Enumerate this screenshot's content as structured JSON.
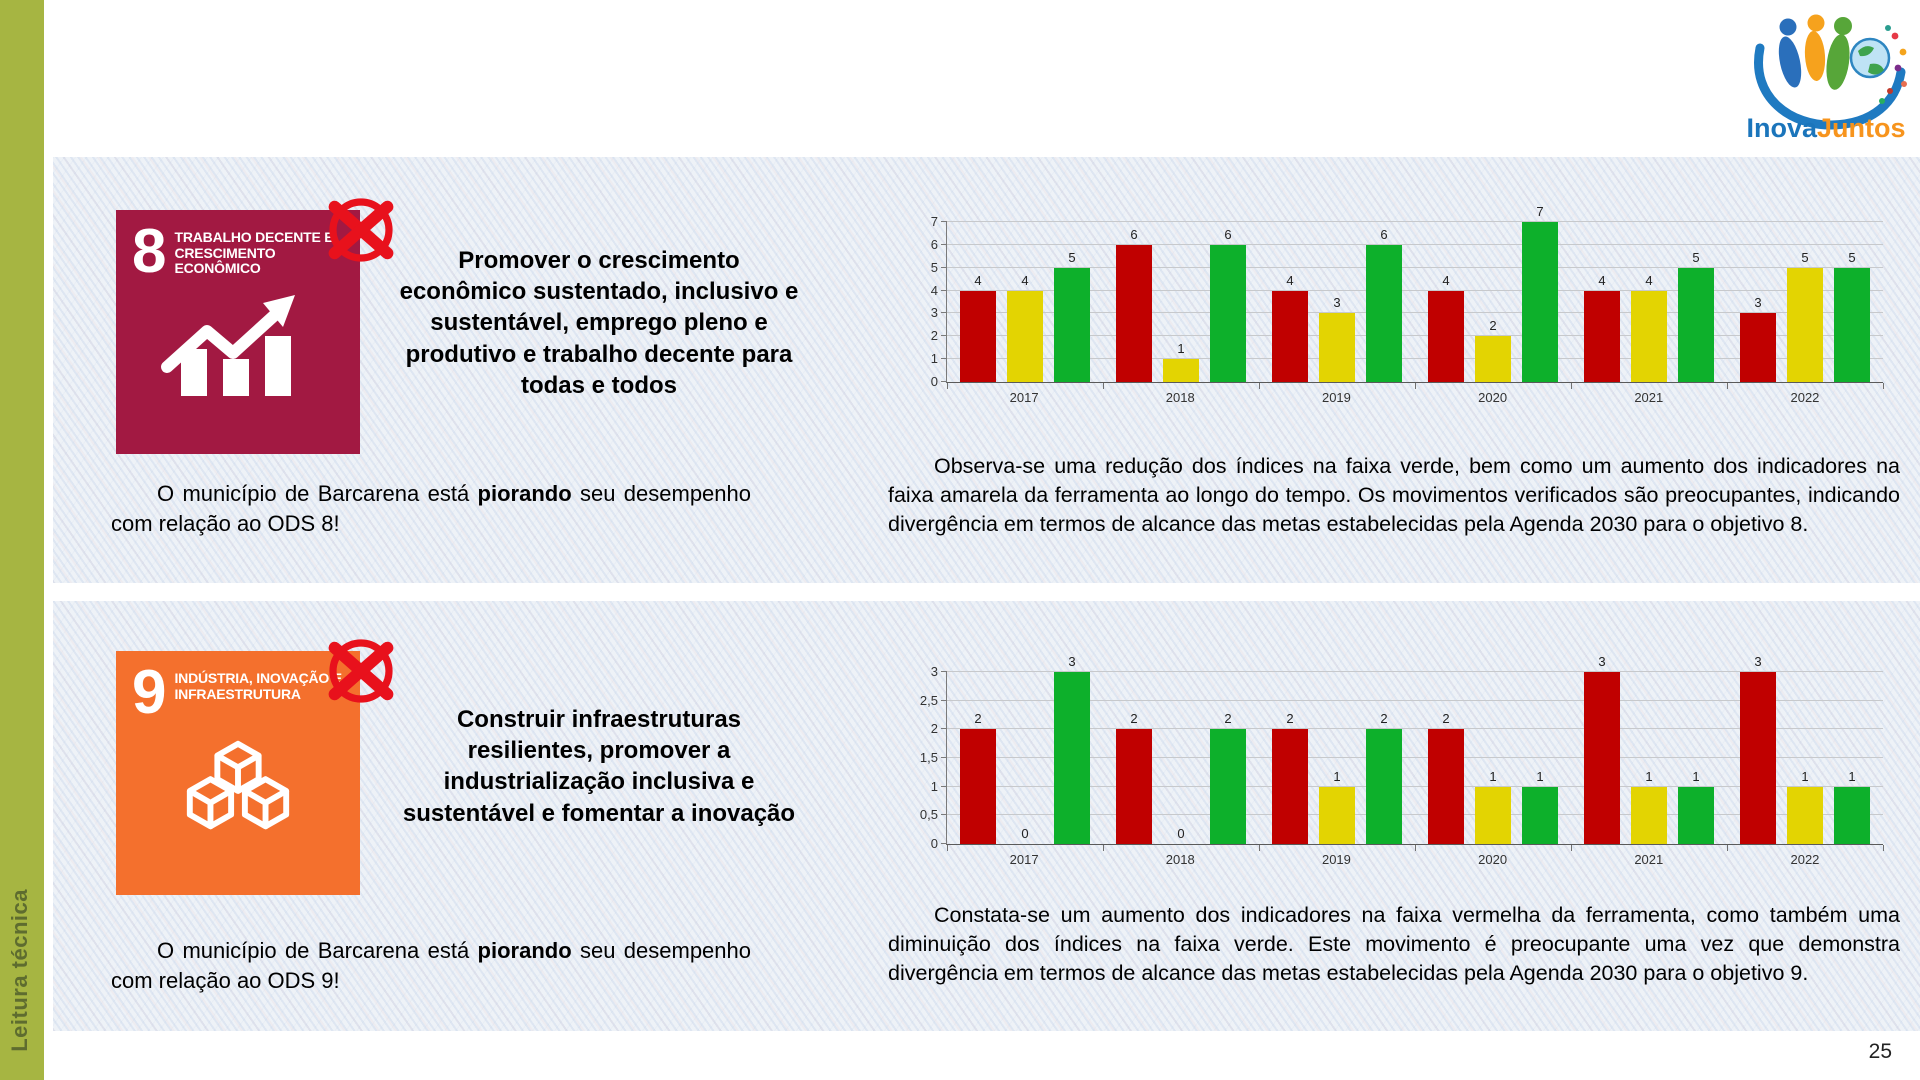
{
  "page_number": "25",
  "sidebar_label": "Leitura técnica",
  "logo": {
    "word1": "Inova",
    "word2": "Juntos"
  },
  "colors": {
    "red_band": "#c00000",
    "yellow_band": "#e3d402",
    "green_band": "#0db02b",
    "tile8": "#a21942",
    "tile9": "#f4702d",
    "stamp": "#e8111c",
    "sidebar": "#a6b542"
  },
  "sections": [
    {
      "goal_number": "8",
      "goal_title": "TRABALHO DECENTE E CRESCIMENTO ECONÔMICO",
      "headline": "Promover o crescimento econômico sustentado, inclusivo e sustentável, emprego pleno e produtivo e trabalho decente para todas e todos",
      "status": {
        "pre": "O município de Barcarena está ",
        "bold": "piorando",
        "post": " seu desempenho com relação ao ODS 8!"
      },
      "analysis": "Observa-se uma redução dos índices na faixa verde, bem como um aumento dos indicadores na faixa amarela da ferramenta ao longo do tempo. Os movimentos verificados são preocupantes, indicando divergência em termos de alcance das metas estabelecidas pela Agenda 2030 para o objetivo 8."
    },
    {
      "goal_number": "9",
      "goal_title": "INDÚSTRIA, INOVAÇÃO E INFRAESTRUTURA",
      "headline": "Construir infraestruturas resilientes, promover a industrialização inclusiva e sustentável e fomentar a inovação",
      "status": {
        "pre": "O município de Barcarena está ",
        "bold": "piorando",
        "post": " seu desempenho com relação ao ODS 9!"
      },
      "analysis": "Constata-se um aumento dos indicadores na faixa vermelha da ferramenta, como também uma diminuição dos índices na faixa verde. Este movimento é preocupante uma vez que demonstra divergência em termos de alcance das metas estabelecidas pela Agenda 2030 para o objetivo 9."
    }
  ],
  "chart_data": [
    {
      "type": "bar",
      "title": "",
      "categories": [
        "2017",
        "2018",
        "2019",
        "2020",
        "2021",
        "2022"
      ],
      "series": [
        {
          "name": "faixa-vermelha",
          "color": "#c00000",
          "values": [
            4,
            6,
            4,
            4,
            4,
            3
          ]
        },
        {
          "name": "faixa-amarela",
          "color": "#e3d402",
          "values": [
            4,
            1,
            3,
            2,
            4,
            5
          ]
        },
        {
          "name": "faixa-verde",
          "color": "#0db02b",
          "values": [
            5,
            6,
            6,
            7,
            5,
            5
          ]
        }
      ],
      "ylim": [
        0,
        7
      ],
      "yticks": [
        "0",
        "1",
        "2",
        "3",
        "4",
        "5",
        "6",
        "7"
      ],
      "grid": true,
      "legend": "none",
      "data_labels": true
    },
    {
      "type": "bar",
      "title": "",
      "categories": [
        "2017",
        "2018",
        "2019",
        "2020",
        "2021",
        "2022"
      ],
      "series": [
        {
          "name": "faixa-vermelha",
          "color": "#c00000",
          "values": [
            2,
            2,
            2,
            2,
            3,
            3
          ]
        },
        {
          "name": "faixa-amarela",
          "color": "#e3d402",
          "values": [
            0,
            0,
            1,
            1,
            1,
            1
          ]
        },
        {
          "name": "faixa-verde",
          "color": "#0db02b",
          "values": [
            3,
            2,
            2,
            1,
            1,
            1
          ]
        }
      ],
      "ylim": [
        0,
        3
      ],
      "yticks": [
        "0",
        "0,5",
        "1",
        "1,5",
        "2",
        "2,5",
        "3"
      ],
      "grid": true,
      "legend": "none",
      "data_labels": true
    }
  ]
}
